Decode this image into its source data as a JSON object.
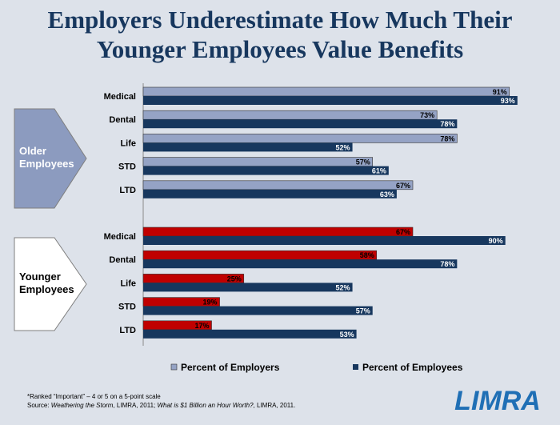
{
  "title_line1": "Employers Underestimate How Much Their",
  "title_line2": "Younger Employees Value Benefits",
  "footnote_line1": "*Ranked “Important” – 4 or 5 on a 5-point scale",
  "source_prefix": "Source: ",
  "source_italic1": "Weathering the Storm",
  "source_mid": ", LIMRA, 2011; ",
  "source_italic2": "What is $1 Billion an Hour Worth?",
  "source_suffix": ", LIMRA, 2011.",
  "logo_text": "LIMRA",
  "colors": {
    "title": "#17375e",
    "employers_older": "#95a3c5",
    "employers_younger": "#c00000",
    "employees": "#17375e",
    "arrow_older": "#8c9bbf",
    "arrow_younger": "#ffffff",
    "logo": "#1f6fb5"
  },
  "chart_data": {
    "type": "bar",
    "orientation": "horizontal",
    "xlim": [
      0,
      100
    ],
    "legend_position": "bottom",
    "groups": [
      {
        "label": "Older Employees",
        "categories": [
          "Medical",
          "Dental",
          "Life",
          "STD",
          "LTD"
        ],
        "series": [
          {
            "name": "Percent of Employers",
            "values": [
              91,
              73,
              78,
              57,
              67
            ]
          },
          {
            "name": "Percent of Employees",
            "values": [
              93,
              78,
              52,
              61,
              63
            ]
          }
        ]
      },
      {
        "label": "Younger Employees",
        "categories": [
          "Medical",
          "Dental",
          "Life",
          "STD",
          "LTD"
        ],
        "series": [
          {
            "name": "Percent of Employers",
            "values": [
              67,
              58,
              25,
              19,
              17
            ]
          },
          {
            "name": "Percent of Employees",
            "values": [
              90,
              78,
              52,
              57,
              53
            ]
          }
        ]
      }
    ],
    "legend": [
      "Percent of Employers",
      "Percent of Employees"
    ]
  }
}
